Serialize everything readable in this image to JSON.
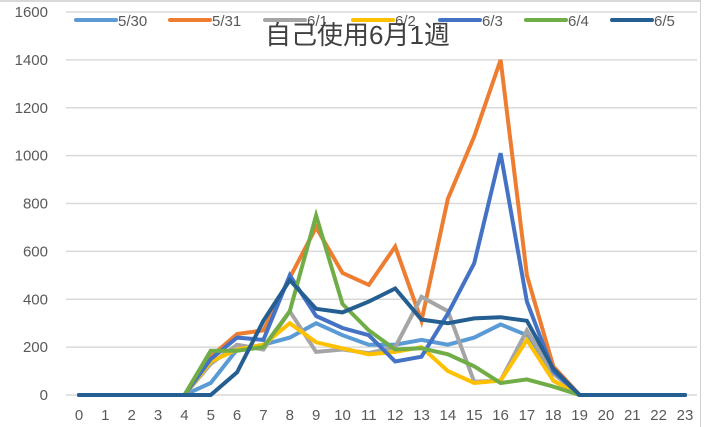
{
  "chart_data": {
    "type": "line",
    "title": "自己使用6月1週",
    "xlabel": "",
    "ylabel": "",
    "ylim": [
      0,
      1600
    ],
    "yticks": [
      0,
      200,
      400,
      600,
      800,
      1000,
      1200,
      1400,
      1600
    ],
    "grid": true,
    "legend_position": "top",
    "x": [
      0,
      1,
      2,
      3,
      4,
      5,
      6,
      7,
      8,
      9,
      10,
      11,
      12,
      13,
      14,
      15,
      16,
      17,
      18,
      19,
      20,
      21,
      22,
      23
    ],
    "series": [
      {
        "name": "5/30",
        "color": "#5b9bd5",
        "values": [
          0,
          0,
          0,
          0,
          0,
          50,
          190,
          210,
          240,
          300,
          250,
          210,
          210,
          230,
          210,
          240,
          295,
          250,
          60,
          0,
          0,
          0,
          0,
          0
        ]
      },
      {
        "name": "5/31",
        "color": "#ed7d31",
        "values": [
          0,
          0,
          0,
          0,
          0,
          160,
          255,
          270,
          490,
          700,
          510,
          460,
          620,
          310,
          820,
          1080,
          1400,
          500,
          120,
          0,
          0,
          0,
          0,
          0
        ]
      },
      {
        "name": "6/1",
        "color": "#a5a5a5",
        "values": [
          0,
          0,
          0,
          0,
          0,
          130,
          210,
          190,
          350,
          180,
          190,
          175,
          200,
          410,
          350,
          55,
          60,
          270,
          90,
          0,
          0,
          0,
          0,
          0
        ]
      },
      {
        "name": "6/2",
        "color": "#ffc000",
        "values": [
          0,
          0,
          0,
          0,
          0,
          140,
          190,
          210,
          300,
          220,
          195,
          170,
          180,
          200,
          100,
          50,
          60,
          230,
          60,
          0,
          0,
          0,
          0,
          0
        ]
      },
      {
        "name": "6/3",
        "color": "#4472c4",
        "values": [
          0,
          0,
          0,
          0,
          0,
          150,
          240,
          230,
          500,
          330,
          280,
          250,
          140,
          160,
          340,
          550,
          1010,
          390,
          100,
          0,
          0,
          0,
          0,
          0
        ]
      },
      {
        "name": "6/4",
        "color": "#70ad47",
        "values": [
          0,
          0,
          0,
          0,
          0,
          185,
          185,
          200,
          350,
          750,
          380,
          270,
          190,
          195,
          170,
          120,
          50,
          65,
          35,
          0,
          0,
          0,
          0,
          0
        ]
      },
      {
        "name": "6/5",
        "color": "#255e91",
        "values": [
          0,
          0,
          0,
          0,
          0,
          0,
          95,
          310,
          480,
          360,
          345,
          390,
          445,
          315,
          300,
          320,
          325,
          310,
          110,
          0,
          0,
          0,
          0,
          0
        ]
      }
    ]
  },
  "legend": [
    {
      "label": "5/30"
    },
    {
      "label": "5/31"
    },
    {
      "label": "6/1"
    },
    {
      "label": "6/2"
    },
    {
      "label": "6/3"
    },
    {
      "label": "6/4"
    },
    {
      "label": "6/5"
    }
  ],
  "title": "自己使用6月1週"
}
